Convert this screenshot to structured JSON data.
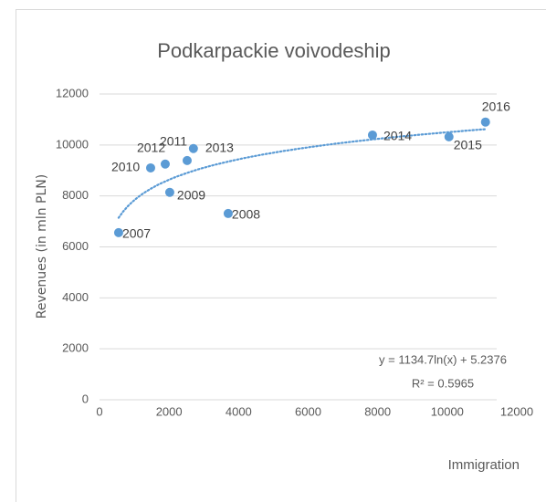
{
  "chart_data": {
    "type": "scatter",
    "title": "Podkarpackie voivodeship",
    "xlabel": "Immigration",
    "ylabel": "Revenues (in mln PLN)",
    "x": [
      550,
      3700,
      2020,
      1470,
      2520,
      1890,
      2700,
      7850,
      10050,
      11100
    ],
    "series": [
      {
        "color": "#5b9bd5",
        "values": [
          6560,
          7310,
          8140,
          9100,
          9390,
          9250,
          9860,
          10390,
          10320,
          10900
        ],
        "point_labels": [
          "2007",
          "2008",
          "2009",
          "2010",
          "2011",
          "2012",
          "2013",
          "2014",
          "2015",
          "2016"
        ]
      }
    ],
    "trendline": {
      "type": "log",
      "equation": "y = 1134.7ln(x) + 5.2376",
      "r_squared": "R² = 0.5965"
    },
    "xlim": [
      0,
      12000
    ],
    "xticks": [
      0,
      2000,
      4000,
      6000,
      8000,
      10000,
      12000
    ],
    "ylim": [
      0,
      12000
    ],
    "yticks": [
      0,
      2000,
      4000,
      6000,
      8000,
      10000,
      12000
    ],
    "grid": true
  }
}
